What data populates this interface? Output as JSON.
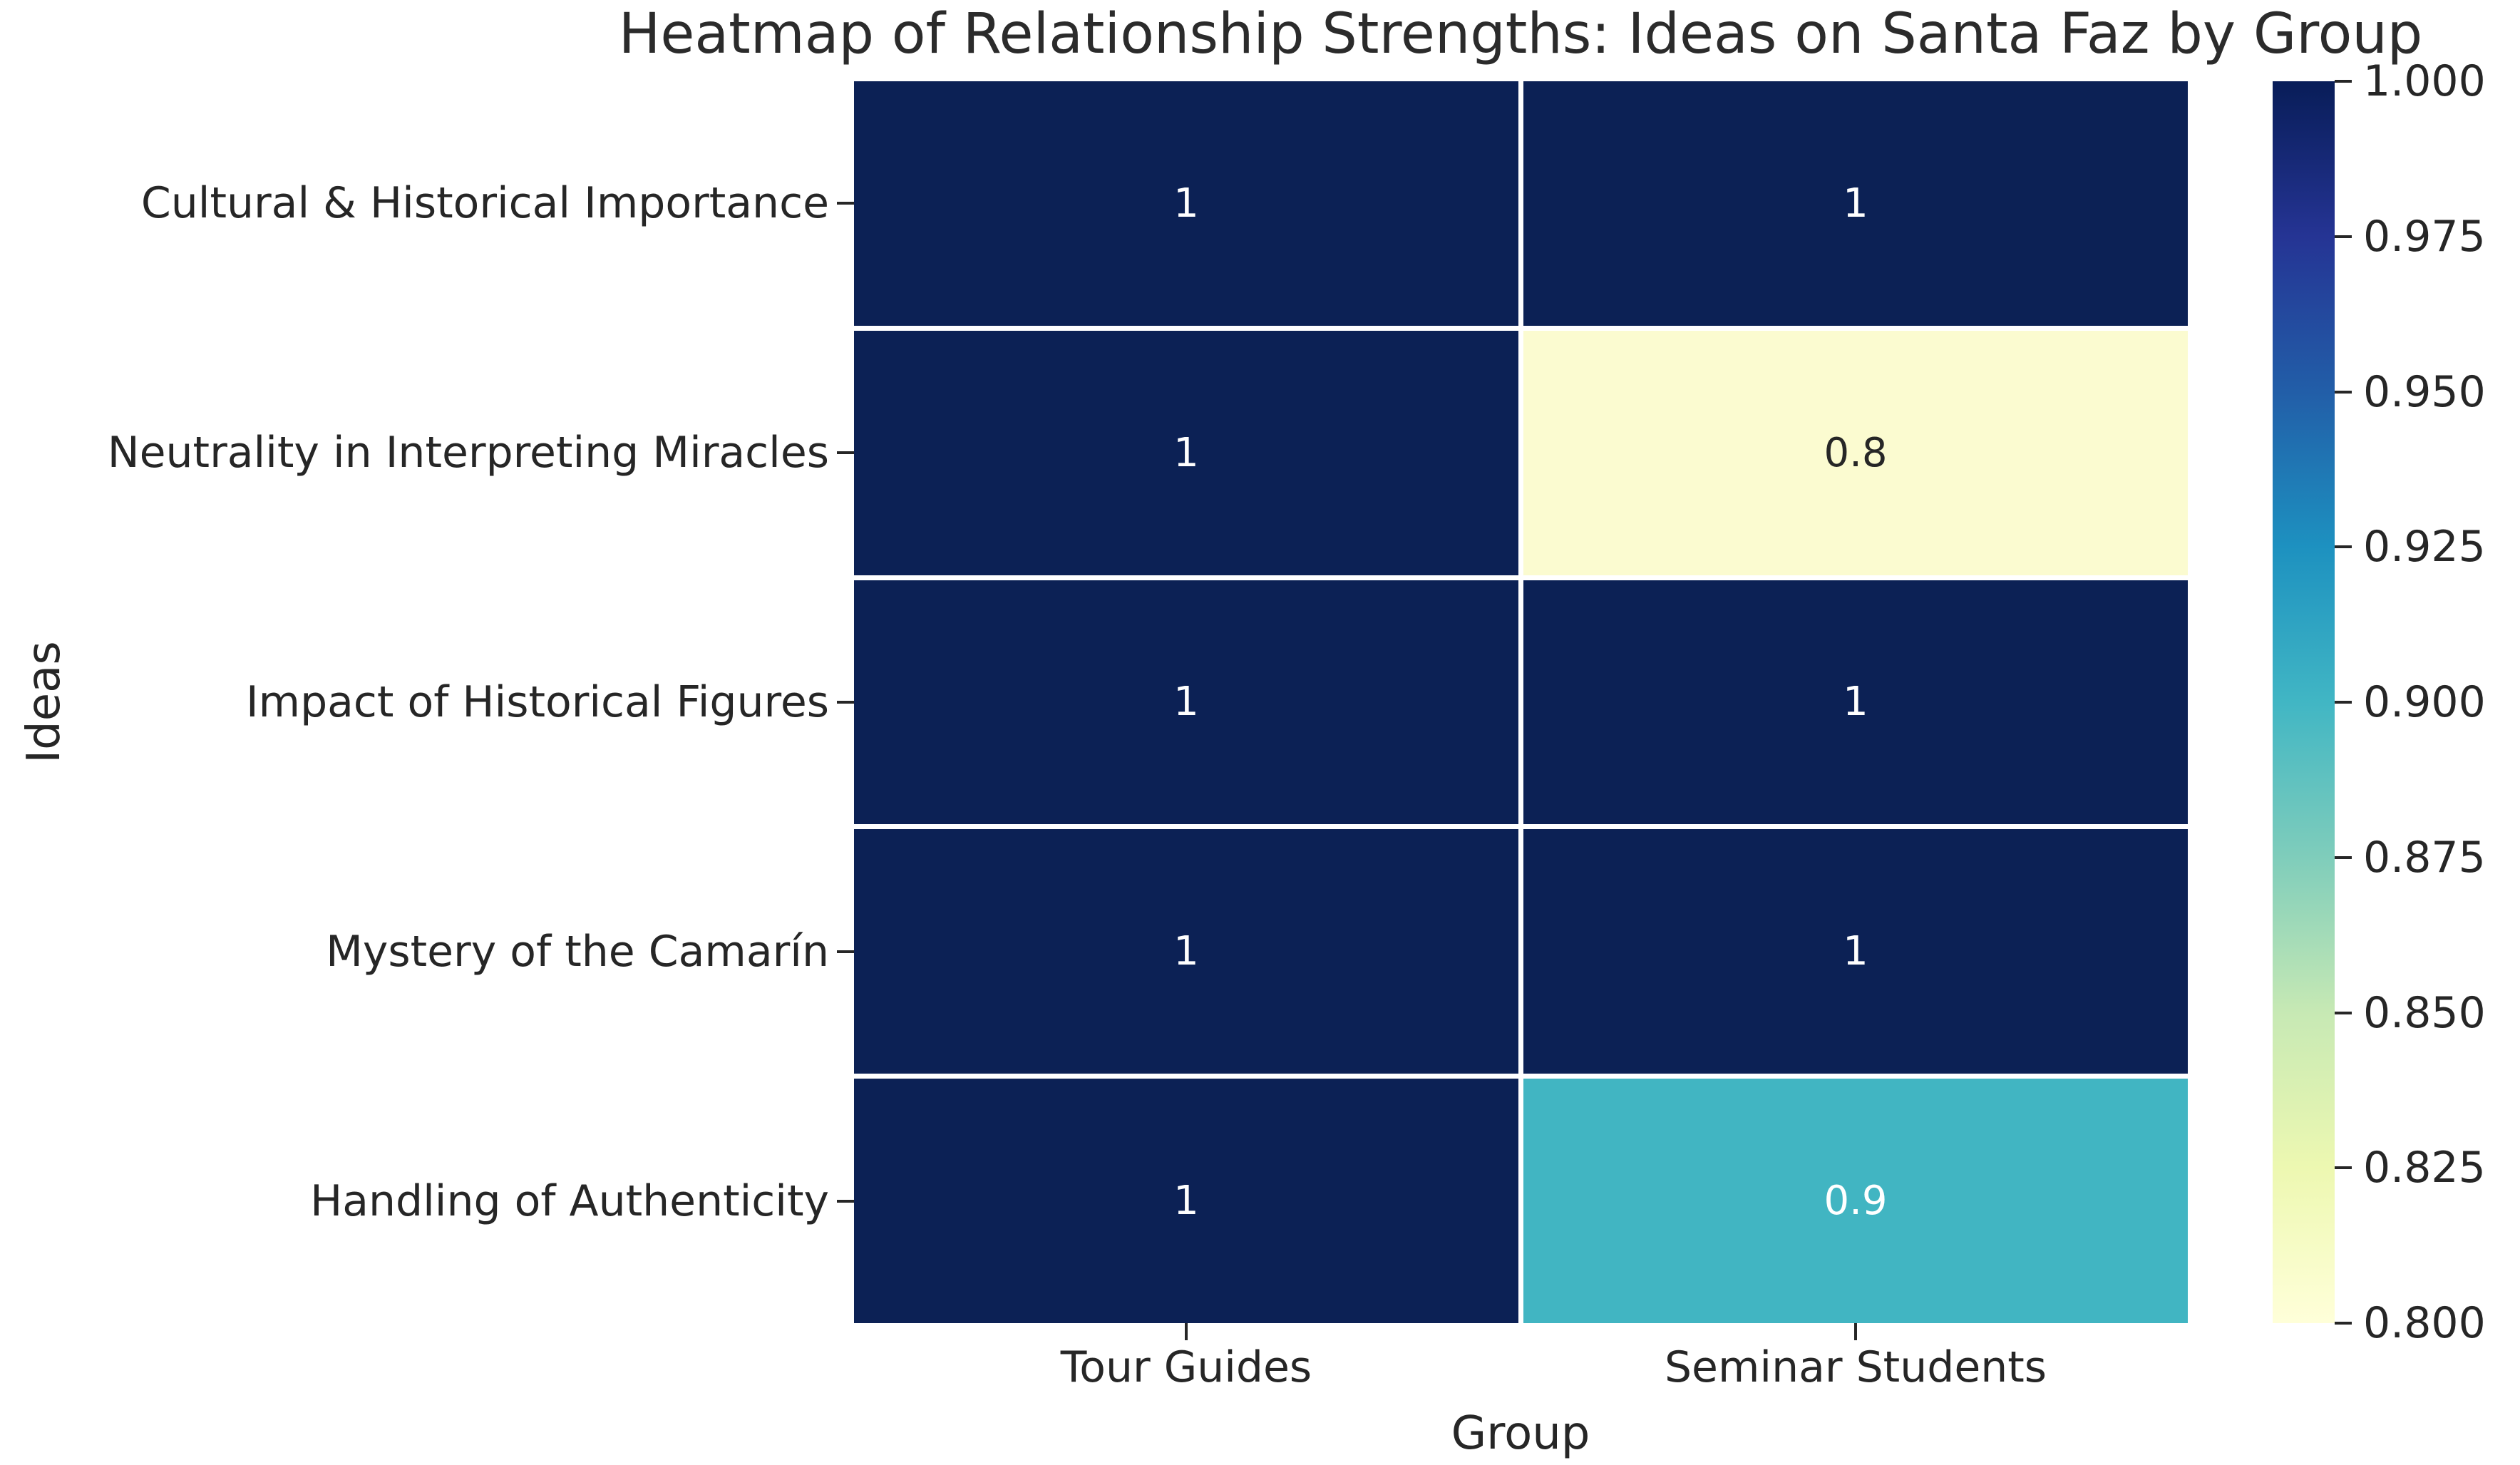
{
  "title": "Heatmap of Relationship Strengths: Ideas on Santa Faz by Group",
  "chart_data": {
    "type": "heatmap",
    "title": "Heatmap of Relationship Strengths: Ideas on Santa Faz by Group",
    "xlabel": "Group",
    "ylabel": "Ideas",
    "categories_x": [
      "Tour Guides",
      "Seminar Students"
    ],
    "categories_y": [
      "Cultural & Historical Importance",
      "Neutrality in Interpreting Miracles",
      "Impact of Historical Figures",
      "Mystery of the Camarín",
      "Handling of Authenticity"
    ],
    "values": [
      [
        1,
        1
      ],
      [
        1,
        0.8
      ],
      [
        1,
        1
      ],
      [
        1,
        1
      ],
      [
        1,
        0.9
      ]
    ],
    "cells": [
      [
        {
          "label": "1",
          "bg": "#0c2155",
          "fg": "#ffffff"
        },
        {
          "label": "1",
          "bg": "#0c2155",
          "fg": "#ffffff"
        }
      ],
      [
        {
          "label": "1",
          "bg": "#0c2155",
          "fg": "#ffffff"
        },
        {
          "label": "0.8",
          "bg": "#fbfbd0",
          "fg": "#262626"
        }
      ],
      [
        {
          "label": "1",
          "bg": "#0c2155",
          "fg": "#ffffff"
        },
        {
          "label": "1",
          "bg": "#0c2155",
          "fg": "#ffffff"
        }
      ],
      [
        {
          "label": "1",
          "bg": "#0c2155",
          "fg": "#ffffff"
        },
        {
          "label": "1",
          "bg": "#0c2155",
          "fg": "#ffffff"
        }
      ],
      [
        {
          "label": "1",
          "bg": "#0c2155",
          "fg": "#ffffff"
        },
        {
          "label": "0.9",
          "bg": "#41b5c2",
          "fg": "#ffffff"
        }
      ]
    ],
    "colormap": "YlGnBu",
    "vmin": 0.8,
    "vmax": 1.0,
    "grid": "white gaps between cells",
    "legend_position": "colorbar right",
    "colorbar_tick_labels": [
      "1.000",
      "0.975",
      "0.950",
      "0.925",
      "0.900",
      "0.875",
      "0.850",
      "0.825",
      "0.800"
    ],
    "colormap_stops_top_to_bottom": [
      "#081d58",
      "#253494",
      "#225ea8",
      "#1d91c0",
      "#41b6c4",
      "#7fcdbb",
      "#c7e9b4",
      "#edf8b1",
      "#ffffd9"
    ]
  },
  "colors": {
    "background": "#ffffff",
    "text": "#262626",
    "cell_value_max": "#0c2155",
    "cell_value_0_9": "#41b5c2",
    "cell_value_0_8": "#fbfbd0",
    "tick_mark": "#262626"
  }
}
